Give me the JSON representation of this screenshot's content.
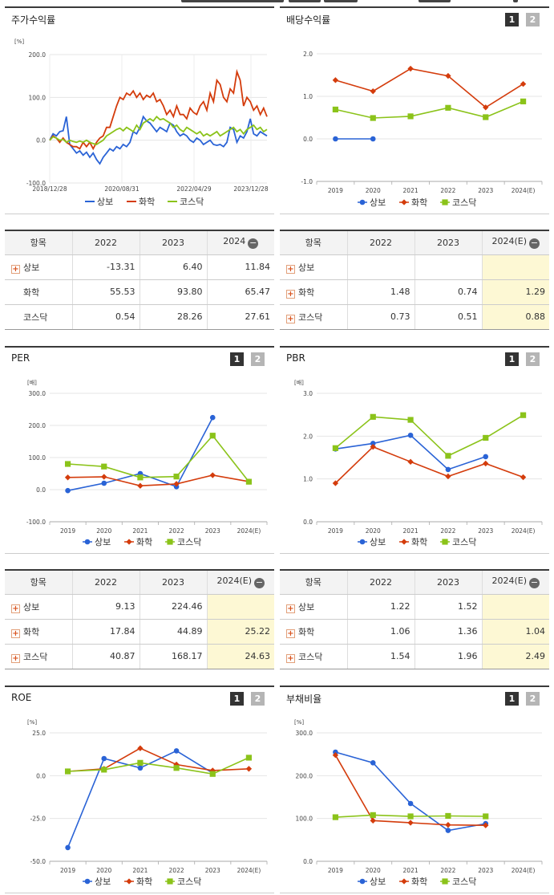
{
  "colors": {
    "sangbo": "#2a63d6",
    "hwahak": "#d43c0c",
    "kosdaq": "#8bc31a"
  },
  "legend": [
    "상보",
    "화학",
    "코스닥"
  ],
  "panels": {
    "stock_return": {
      "title": "주가수익률",
      "unit": "[%]"
    },
    "dividend": {
      "title": "배당수익률",
      "btn1": "1",
      "btn2": "2"
    },
    "per": {
      "title": "PER",
      "unit": "[배]",
      "btn1": "1",
      "btn2": "2"
    },
    "pbr": {
      "title": "PBR",
      "unit": "[배]",
      "btn1": "1",
      "btn2": "2"
    },
    "roe": {
      "title": "ROE",
      "unit": "[%]",
      "btn1": "1",
      "btn2": "2"
    },
    "debt": {
      "title": "부채비율",
      "unit": "[%]",
      "btn1": "1",
      "btn2": "2"
    }
  },
  "tables": {
    "stock_return": {
      "header": [
        "항목",
        "2022",
        "2023",
        "2024"
      ],
      "rows": [
        {
          "name": "상보",
          "plus": true,
          "v": [
            "-13.31",
            "6.40",
            "11.84"
          ]
        },
        {
          "name": "화학",
          "plus": false,
          "v": [
            "55.53",
            "93.80",
            "65.47"
          ]
        },
        {
          "name": "코스닥",
          "plus": false,
          "v": [
            "0.54",
            "28.26",
            "27.61"
          ]
        }
      ]
    },
    "dividend": {
      "header": [
        "항목",
        "2022",
        "2023",
        "2024(E)"
      ],
      "rows": [
        {
          "name": "상보",
          "plus": true,
          "v": [
            "",
            "",
            ""
          ]
        },
        {
          "name": "화학",
          "plus": true,
          "v": [
            "1.48",
            "0.74",
            "1.29"
          ]
        },
        {
          "name": "코스닥",
          "plus": true,
          "v": [
            "0.73",
            "0.51",
            "0.88"
          ]
        }
      ]
    },
    "per": {
      "header": [
        "항목",
        "2022",
        "2023",
        "2024(E)"
      ],
      "rows": [
        {
          "name": "상보",
          "plus": true,
          "v": [
            "9.13",
            "224.46",
            ""
          ]
        },
        {
          "name": "화학",
          "plus": true,
          "v": [
            "17.84",
            "44.89",
            "25.22"
          ]
        },
        {
          "name": "코스닥",
          "plus": true,
          "v": [
            "40.87",
            "168.17",
            "24.63"
          ]
        }
      ]
    },
    "pbr": {
      "header": [
        "항목",
        "2022",
        "2023",
        "2024(E)"
      ],
      "rows": [
        {
          "name": "상보",
          "plus": true,
          "v": [
            "1.22",
            "1.52",
            ""
          ]
        },
        {
          "name": "화학",
          "plus": true,
          "v": [
            "1.06",
            "1.36",
            "1.04"
          ]
        },
        {
          "name": "코스닥",
          "plus": true,
          "v": [
            "1.54",
            "1.96",
            "2.49"
          ]
        }
      ]
    }
  },
  "chart_data": [
    {
      "id": "stock_return",
      "type": "line",
      "title": "주가수익률",
      "ylabel": "[%]",
      "ylim": [
        -100,
        200
      ],
      "yticks": [
        "200.0",
        "100.0",
        "0.0",
        "-100.0"
      ],
      "xticks": [
        "2018/12/28",
        "2020/08/31",
        "2022/04/29",
        "2023/12/28"
      ],
      "series": [
        {
          "name": "상보",
          "values": [
            0,
            15,
            10,
            20,
            22,
            55,
            -10,
            -20,
            -30,
            -25,
            -35,
            -28,
            -40,
            -30,
            -45,
            -55,
            -40,
            -30,
            -20,
            -25,
            -15,
            -20,
            -10,
            -15,
            -5,
            20,
            15,
            30,
            55,
            45,
            40,
            30,
            20,
            30,
            25,
            20,
            40,
            35,
            20,
            10,
            15,
            10,
            0,
            -5,
            5,
            0,
            -10,
            -5,
            0,
            -10,
            -12,
            -10,
            -15,
            -5,
            30,
            25,
            -5,
            10,
            5,
            20,
            50,
            15,
            10,
            20,
            15,
            10
          ]
        },
        {
          "name": "화학",
          "values": [
            0,
            10,
            5,
            -5,
            5,
            -5,
            -10,
            -15,
            -15,
            -20,
            -5,
            -15,
            -5,
            -20,
            -5,
            5,
            10,
            30,
            30,
            55,
            80,
            100,
            95,
            110,
            105,
            115,
            100,
            110,
            95,
            105,
            100,
            110,
            90,
            95,
            80,
            60,
            70,
            55,
            80,
            60,
            60,
            50,
            75,
            65,
            60,
            80,
            90,
            70,
            110,
            90,
            140,
            130,
            100,
            90,
            120,
            110,
            160,
            140,
            80,
            100,
            90,
            70,
            80,
            60,
            75,
            55
          ]
        },
        {
          "name": "코스닥",
          "values": [
            0,
            8,
            5,
            0,
            2,
            -5,
            0,
            -3,
            -5,
            -2,
            -5,
            0,
            -5,
            -8,
            -10,
            -5,
            0,
            10,
            15,
            20,
            25,
            28,
            22,
            30,
            25,
            20,
            35,
            25,
            40,
            45,
            50,
            45,
            55,
            48,
            50,
            45,
            40,
            30,
            35,
            25,
            20,
            30,
            25,
            20,
            15,
            20,
            10,
            15,
            10,
            15,
            20,
            10,
            15,
            20,
            25,
            30,
            20,
            25,
            15,
            25,
            30,
            35,
            25,
            30,
            20,
            25
          ]
        }
      ]
    },
    {
      "id": "dividend",
      "type": "line",
      "title": "배당수익률",
      "ylim": [
        -1,
        2
      ],
      "yticks": [
        "2.0",
        "1.0",
        "0.0",
        "-1.0"
      ],
      "categories": [
        "2019",
        "2020",
        "2021",
        "2022",
        "2023",
        "2024(E)"
      ],
      "series": [
        {
          "name": "상보",
          "values": [
            0,
            0,
            null,
            null,
            null,
            null
          ]
        },
        {
          "name": "화학",
          "values": [
            1.38,
            1.12,
            1.65,
            1.48,
            0.74,
            1.29
          ]
        },
        {
          "name": "코스닥",
          "values": [
            0.69,
            0.49,
            0.53,
            0.73,
            0.51,
            0.88
          ]
        }
      ]
    },
    {
      "id": "per",
      "type": "line",
      "title": "PER",
      "ylabel": "[배]",
      "ylim": [
        -100,
        300
      ],
      "yticks": [
        "300.0",
        "200.0",
        "100.0",
        "0.0",
        "-100.0"
      ],
      "categories": [
        "2019",
        "2020",
        "2021",
        "2022",
        "2023",
        "2024(E)"
      ],
      "series": [
        {
          "name": "상보",
          "values": [
            -3,
            20,
            50,
            9.13,
            224.46,
            null
          ]
        },
        {
          "name": "화학",
          "values": [
            38,
            40,
            12,
            17.84,
            44.89,
            25.22
          ]
        },
        {
          "name": "코스닥",
          "values": [
            80,
            72,
            38,
            40.87,
            168.17,
            24.63
          ]
        }
      ]
    },
    {
      "id": "pbr",
      "type": "line",
      "title": "PBR",
      "ylabel": "[배]",
      "ylim": [
        0,
        3
      ],
      "yticks": [
        "3.0",
        "2.0",
        "1.0",
        "0.0"
      ],
      "categories": [
        "2019",
        "2020",
        "2021",
        "2022",
        "2023",
        "2024(E)"
      ],
      "series": [
        {
          "name": "상보",
          "values": [
            1.7,
            1.83,
            2.02,
            1.22,
            1.52,
            null
          ]
        },
        {
          "name": "화학",
          "values": [
            0.9,
            1.75,
            1.4,
            1.06,
            1.36,
            1.04
          ]
        },
        {
          "name": "코스닥",
          "values": [
            1.72,
            2.45,
            2.38,
            1.54,
            1.96,
            2.49
          ]
        }
      ]
    },
    {
      "id": "roe",
      "type": "line",
      "title": "ROE",
      "ylabel": "[%]",
      "ylim": [
        -50,
        25
      ],
      "yticks": [
        "25.0",
        "0.0",
        "-25.0",
        "-50.0"
      ],
      "categories": [
        "2019",
        "2020",
        "2021",
        "2022",
        "2023",
        "2024(E)"
      ],
      "series": [
        {
          "name": "상보",
          "values": [
            -42,
            10,
            4.5,
            14.5,
            1.5,
            null
          ]
        },
        {
          "name": "화학",
          "values": [
            2.5,
            4,
            16,
            6.5,
            3,
            4
          ]
        },
        {
          "name": "코스닥",
          "values": [
            2.5,
            3.5,
            7.5,
            4.5,
            1,
            10.5
          ]
        }
      ]
    },
    {
      "id": "debt",
      "type": "line",
      "title": "부채비율",
      "ylabel": "[%]",
      "ylim": [
        0,
        300
      ],
      "yticks": [
        "300.0",
        "200.0",
        "100.0",
        "0.0"
      ],
      "categories": [
        "2019",
        "2020",
        "2021",
        "2022",
        "2023",
        "2024(E)"
      ],
      "series": [
        {
          "name": "상보",
          "values": [
            255,
            230,
            135,
            72,
            88,
            null
          ]
        },
        {
          "name": "화학",
          "values": [
            248,
            95,
            90,
            85,
            84,
            null
          ]
        },
        {
          "name": "코스닥",
          "values": [
            103,
            108,
            105,
            106,
            105,
            null
          ]
        }
      ]
    }
  ]
}
